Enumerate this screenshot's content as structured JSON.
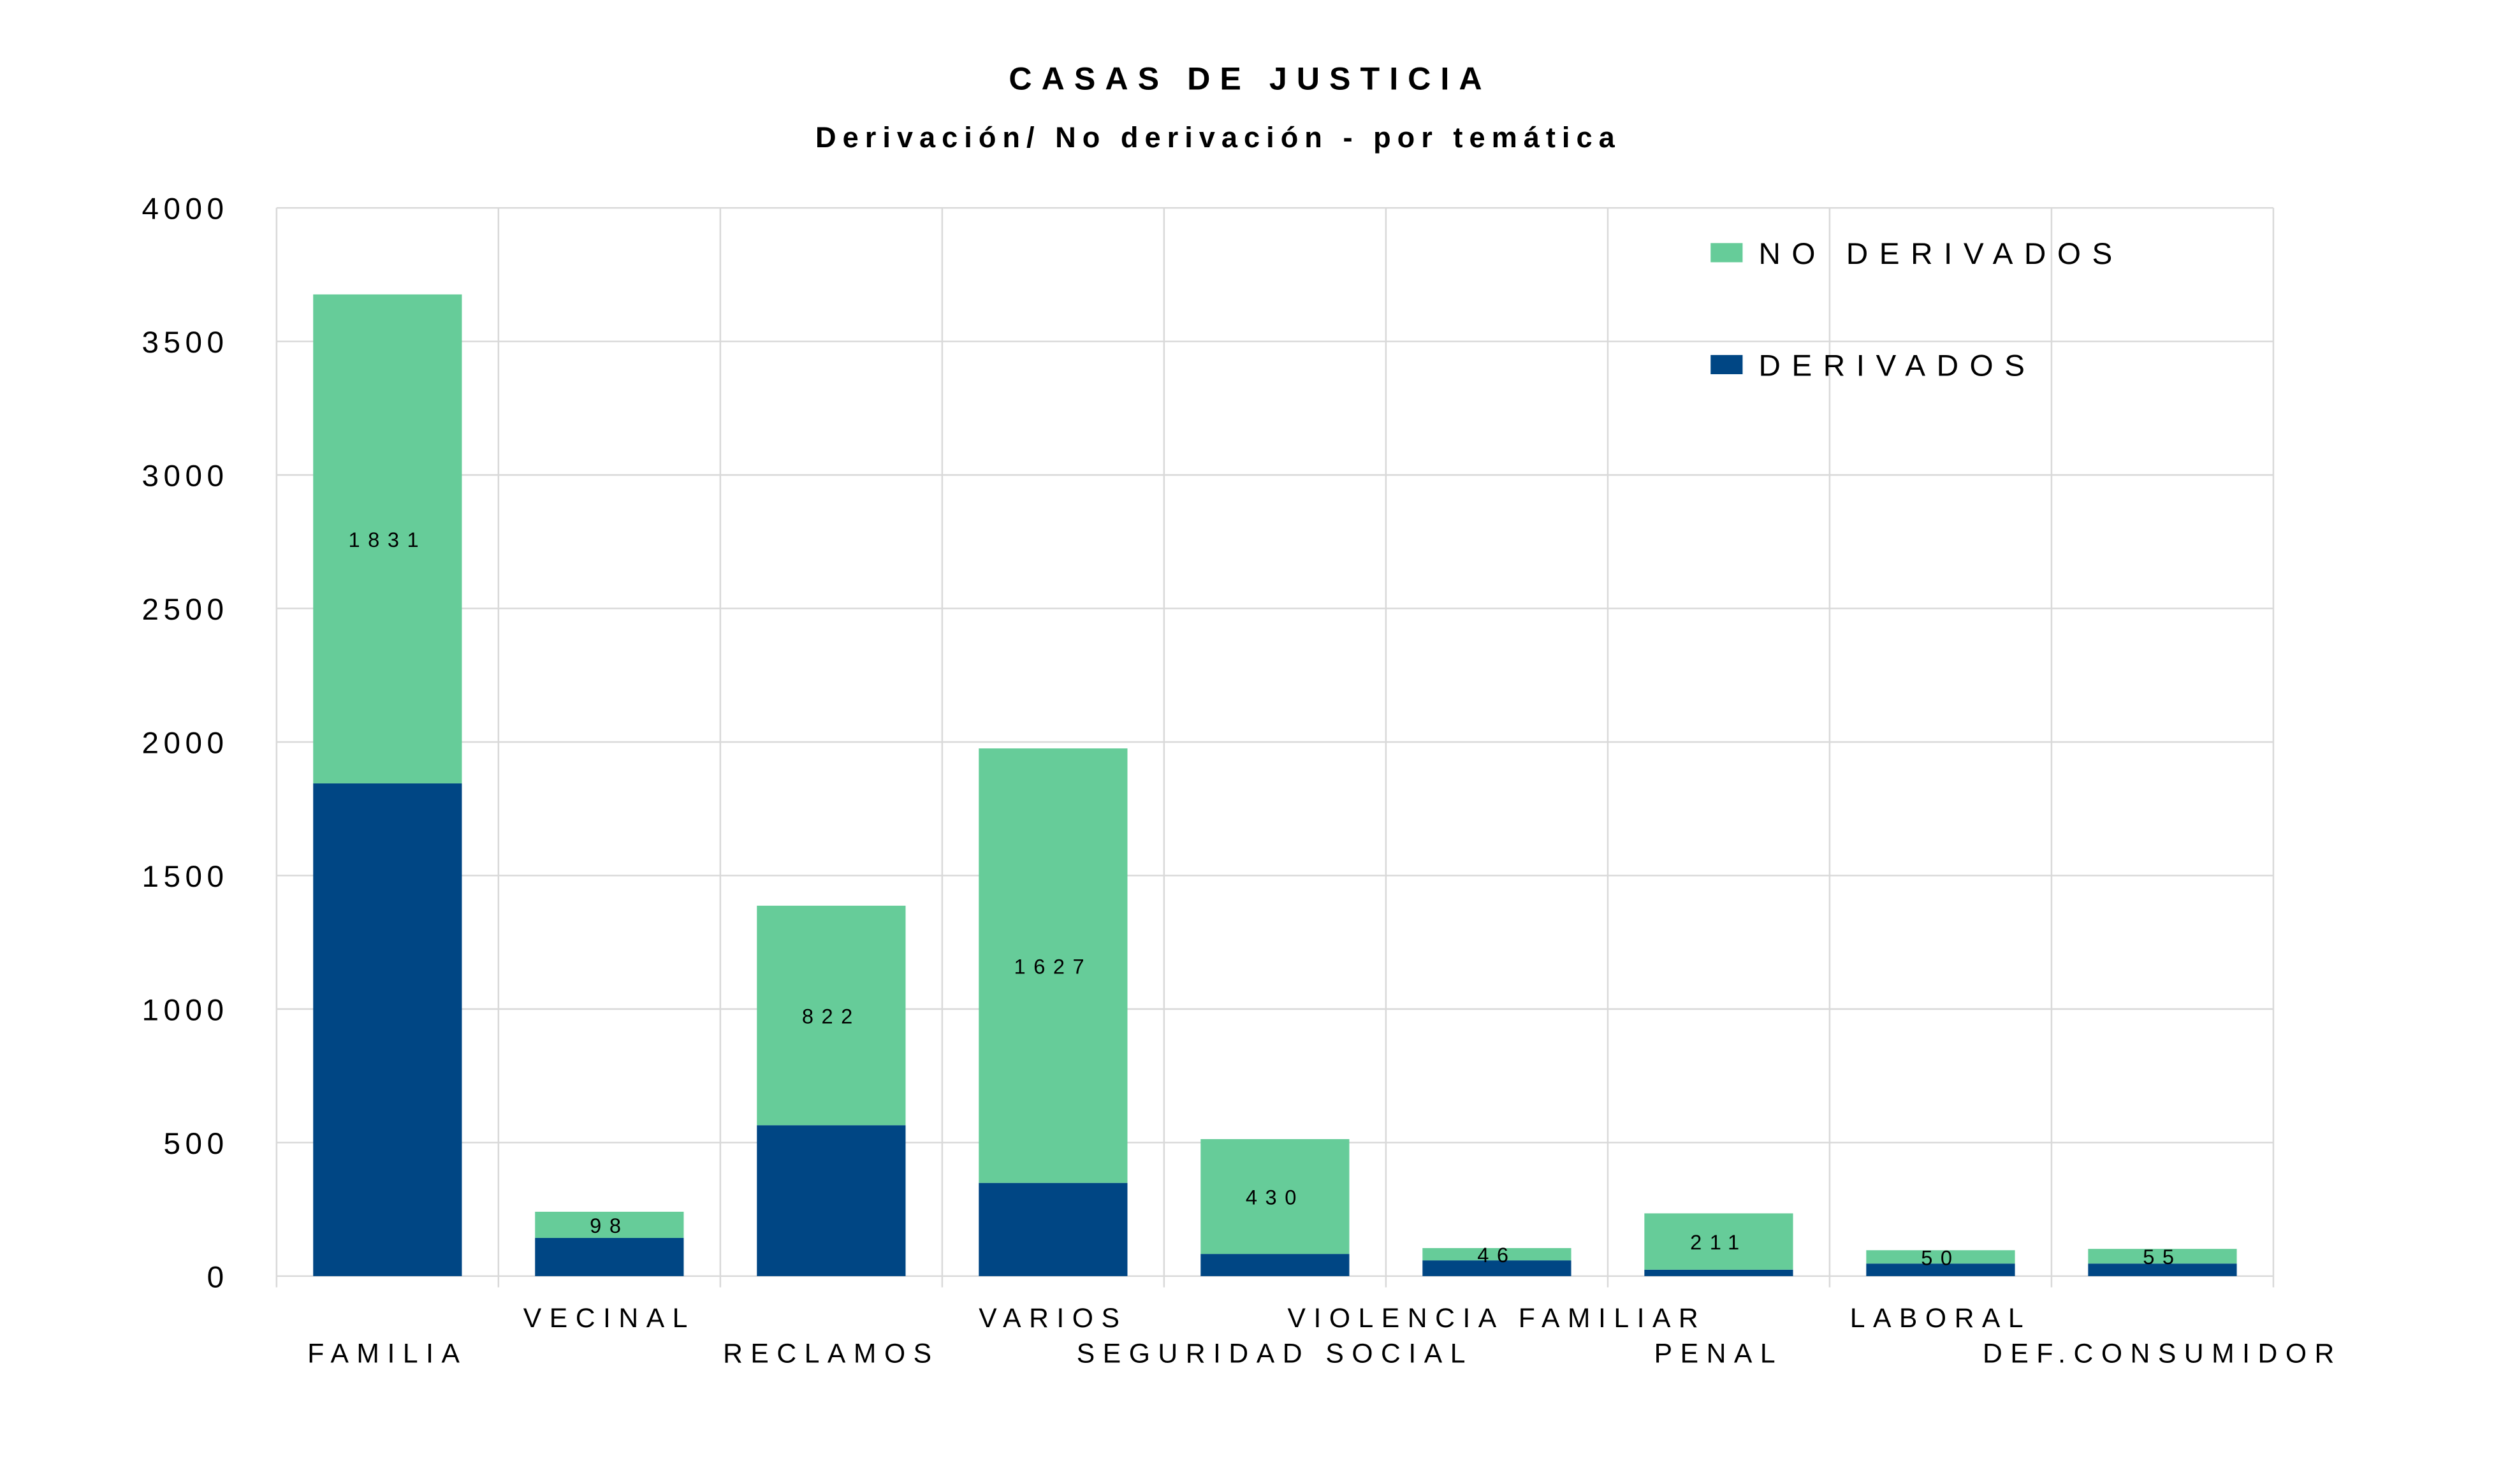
{
  "chart_data": {
    "type": "bar",
    "stacked": true,
    "title": "CASAS DE JUSTICIA",
    "subtitle": "Derivación/ No derivación - por temática",
    "xlabel": "",
    "ylabel": "",
    "ylim": [
      0,
      4000
    ],
    "yticks": [
      0,
      500,
      1000,
      1500,
      2000,
      2500,
      3000,
      3500,
      4000
    ],
    "grid": true,
    "legend_position": "top-right",
    "categories": [
      "FAMILIA",
      "VECINAL",
      "RECLAMOS",
      "VARIOS",
      "SEGURIDAD SOCIAL",
      "VIOLENCIA FAMILIAR",
      "PENAL",
      "LABORAL",
      "DEF.CONSUMIDOR"
    ],
    "series": [
      {
        "name": "DERIVADOS",
        "color": "#004684",
        "values": [
          1845,
          143,
          565,
          349,
          83,
          59,
          24,
          47,
          47
        ],
        "labels_shown": false
      },
      {
        "name": "NO DERIVADOS",
        "color": "#66CC99",
        "values": [
          1831,
          98,
          822,
          1627,
          430,
          46,
          211,
          50,
          55
        ],
        "labels_shown": true
      }
    ]
  }
}
